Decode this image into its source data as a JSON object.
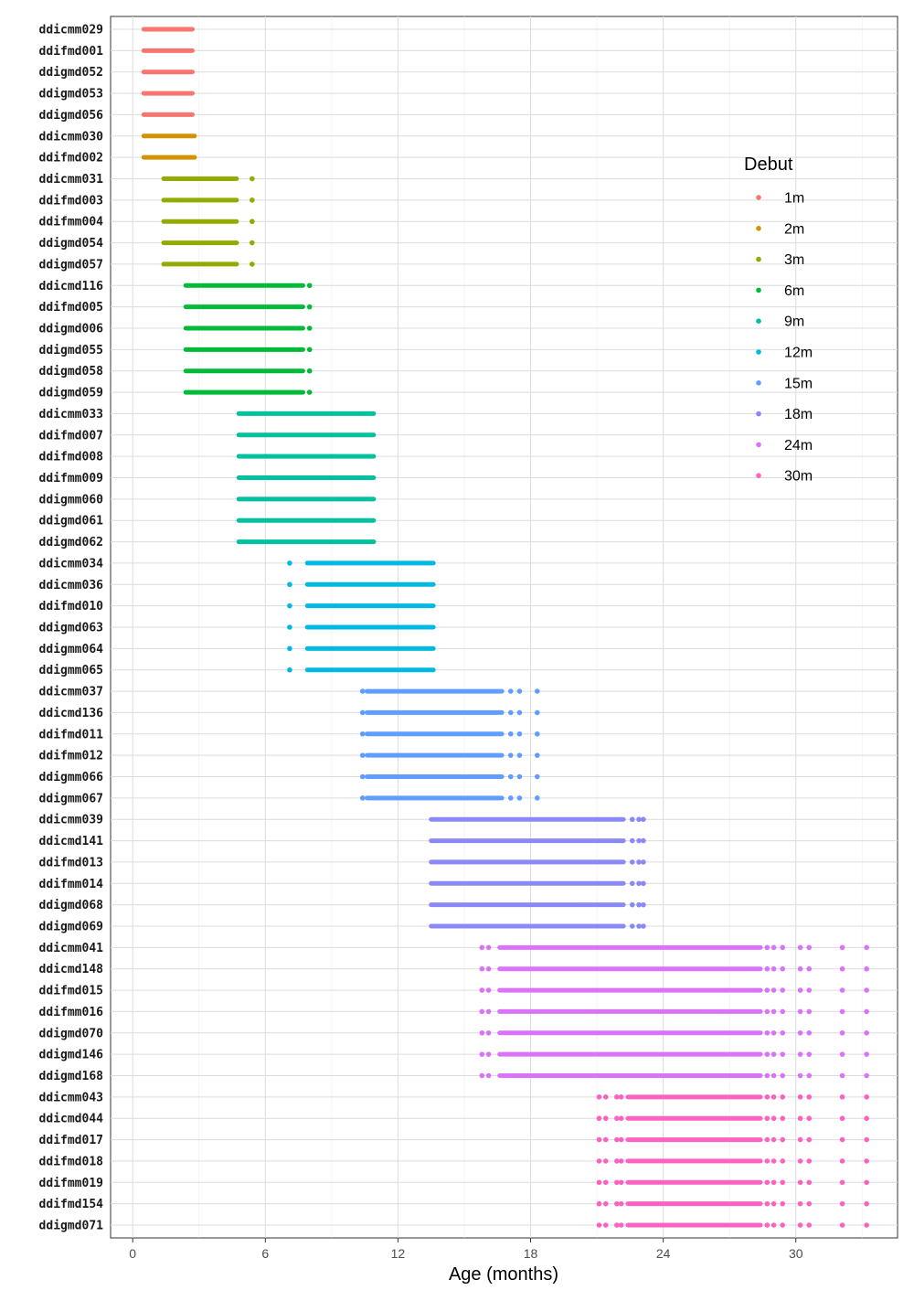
{
  "chart_data": {
    "type": "scatter",
    "xlabel": "Age (months)",
    "ylabel": "",
    "xlim": [
      -1,
      34.6
    ],
    "xticks": [
      0,
      6,
      12,
      18,
      24,
      30
    ],
    "grid": true,
    "legend": {
      "title": "Debut",
      "placement": "right-top"
    },
    "series": [
      {
        "name": "1m",
        "color": "#F8766D",
        "items": [
          "ddicmm029",
          "ddifmd001",
          "ddigmd052",
          "ddigmd053",
          "ddigmd056"
        ],
        "range": [
          0.5,
          2.7
        ],
        "extra": []
      },
      {
        "name": "2m",
        "color": "#D39200",
        "items": [
          "ddicmm030",
          "ddifmd002"
        ],
        "range": [
          0.5,
          2.8
        ],
        "extra": []
      },
      {
        "name": "3m",
        "color": "#93AA00",
        "items": [
          "ddicmm031",
          "ddifmd003",
          "ddifmm004",
          "ddigmd054",
          "ddigmd057"
        ],
        "range": [
          1.4,
          4.7
        ],
        "extra": [
          5.4
        ]
      },
      {
        "name": "6m",
        "color": "#00BA38",
        "items": [
          "ddicmd116",
          "ddifmd005",
          "ddigmd006",
          "ddigmd055",
          "ddigmd058",
          "ddigmd059"
        ],
        "range": [
          2.4,
          7.7
        ],
        "extra": [
          8.0
        ]
      },
      {
        "name": "9m",
        "color": "#00C19F",
        "items": [
          "ddicmm033",
          "ddifmd007",
          "ddifmd008",
          "ddifmm009",
          "ddigmm060",
          "ddigmd061",
          "ddigmd062"
        ],
        "range": [
          4.8,
          10.9
        ],
        "extra": []
      },
      {
        "name": "12m",
        "color": "#00B9E3",
        "items": [
          "ddicmm034",
          "ddicmm036",
          "ddifmd010",
          "ddigmd063",
          "ddigmm064",
          "ddigmm065"
        ],
        "range": [
          7.9,
          13.6
        ],
        "extra": [
          7.1
        ]
      },
      {
        "name": "15m",
        "color": "#619CFF",
        "items": [
          "ddicmm037",
          "ddicmd136",
          "ddifmd011",
          "ddifmm012",
          "ddigmm066",
          "ddigmm067"
        ],
        "range": [
          10.6,
          16.7
        ],
        "extra": [
          10.4,
          17.1,
          17.5,
          18.3
        ]
      },
      {
        "name": "18m",
        "color": "#8B88F8",
        "items": [
          "ddicmm039",
          "ddicmd141",
          "ddifmd013",
          "ddifmm014",
          "ddigmd068",
          "ddigmd069"
        ],
        "range": [
          13.5,
          22.2
        ],
        "extra": [
          22.6,
          22.9,
          23.1
        ]
      },
      {
        "name": "24m",
        "color": "#DB72FB",
        "items": [
          "ddicmm041",
          "ddicmd148",
          "ddifmd015",
          "ddifmm016",
          "ddigmd070",
          "ddigmd146",
          "ddigmd168"
        ],
        "range": [
          16.6,
          28.4
        ],
        "extra": [
          15.8,
          16.1,
          28.7,
          29.0,
          29.4,
          30.2,
          30.6,
          32.1,
          33.2
        ]
      },
      {
        "name": "30m",
        "color": "#FF61C3",
        "items": [
          "ddicmm043",
          "ddicmd044",
          "ddifmd017",
          "ddifmd018",
          "ddifmm019",
          "ddifmd154",
          "ddigmd071"
        ],
        "range": [
          22.4,
          28.4
        ],
        "extra": [
          21.1,
          21.4,
          21.9,
          22.1,
          28.7,
          29.0,
          29.4,
          30.2,
          30.6,
          32.1,
          33.2
        ]
      }
    ]
  }
}
